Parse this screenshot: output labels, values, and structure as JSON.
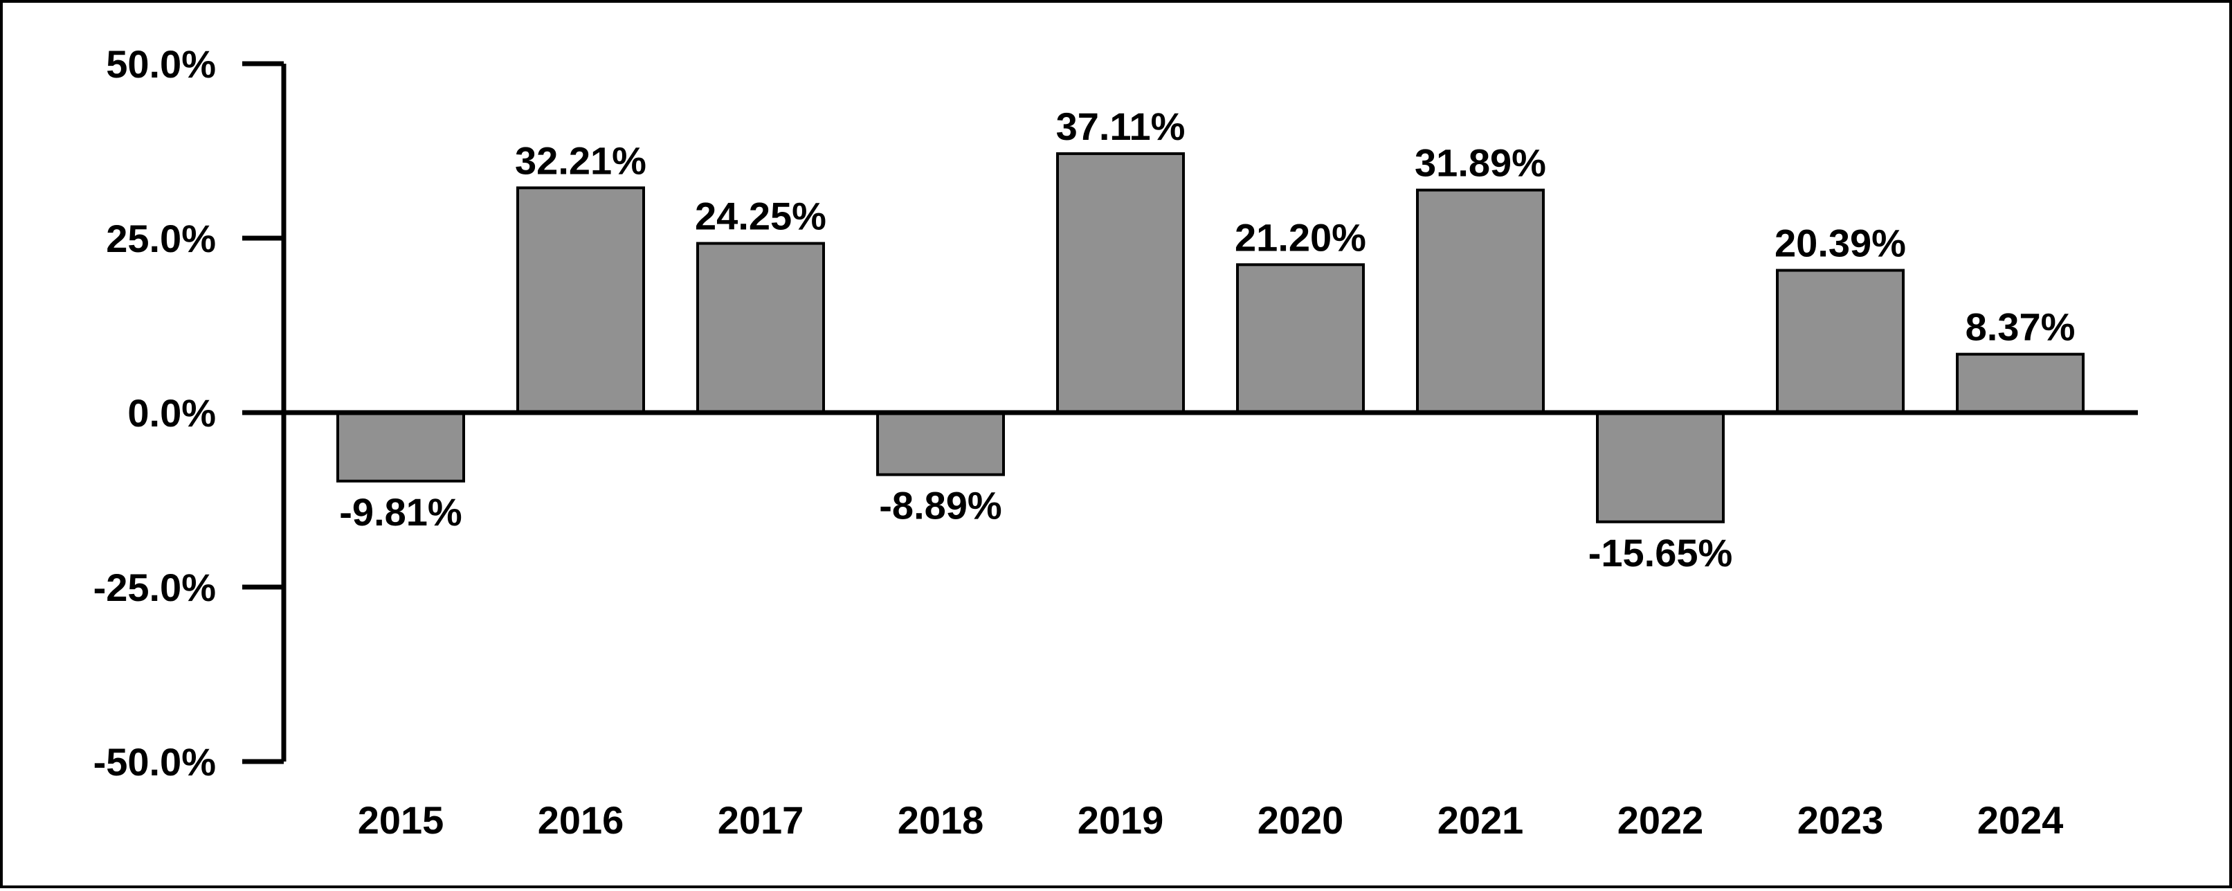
{
  "chart_data": {
    "type": "bar",
    "categories": [
      "2015",
      "2016",
      "2017",
      "2018",
      "2019",
      "2020",
      "2021",
      "2022",
      "2023",
      "2024"
    ],
    "values": [
      -9.81,
      32.21,
      24.25,
      -8.89,
      37.11,
      21.2,
      31.89,
      -15.65,
      20.39,
      8.37
    ],
    "data_labels": [
      "-9.81%",
      "32.21%",
      "24.25%",
      "-8.89%",
      "37.11%",
      "21.20%",
      "31.89%",
      "-15.65%",
      "20.39%",
      "8.37%"
    ],
    "yticks": [
      50,
      25,
      0,
      -25,
      -50
    ],
    "ytick_labels": [
      "50.0%",
      "25.0%",
      "0.0%",
      "-25.0%",
      "-50.0%"
    ],
    "ylim": [
      -50,
      50
    ],
    "title": "",
    "xlabel": "",
    "ylabel": "",
    "grid": false,
    "legend": "none",
    "colors": {
      "bar_fill": "#919191",
      "bar_stroke": "#000000",
      "axis": "#000000",
      "text": "#000000"
    }
  }
}
